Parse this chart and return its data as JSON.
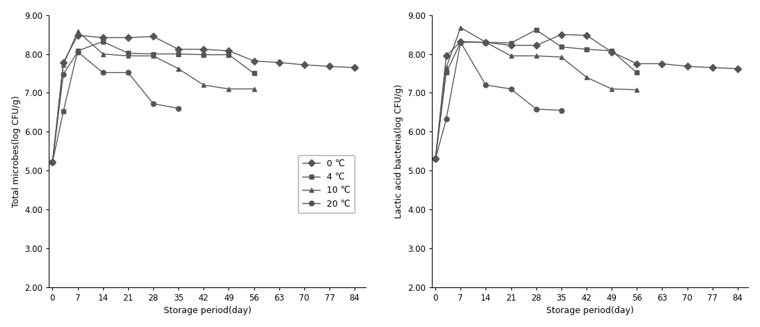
{
  "x_ticks": [
    0,
    7,
    14,
    21,
    28,
    35,
    42,
    49,
    56,
    63,
    70,
    77,
    84
  ],
  "ylim": [
    2.0,
    9.0
  ],
  "yticks": [
    2.0,
    3.0,
    4.0,
    5.0,
    6.0,
    7.0,
    8.0,
    9.0
  ],
  "left_ylabel": "Total microbes(log CFU/g)",
  "right_ylabel": "Lactic acid bacteria(log CFU/g)",
  "xlabel": "Storage period(day)",
  "legend_labels": [
    "0 ℃",
    "4 ℃",
    "10 ℃",
    "20 ℃"
  ],
  "left": {
    "0C": {
      "x": [
        0,
        3,
        7,
        14,
        21,
        28,
        35,
        42,
        49,
        56,
        63,
        70,
        77,
        84
      ],
      "y": [
        5.22,
        7.78,
        8.48,
        8.42,
        8.42,
        8.45,
        8.12,
        8.12,
        8.08,
        7.82,
        7.78,
        7.72,
        7.68,
        7.65
      ]
    },
    "4C": {
      "x": [
        0,
        3,
        7,
        14,
        21,
        28,
        35,
        42,
        49,
        56
      ],
      "y": [
        5.22,
        6.52,
        8.08,
        8.32,
        8.02,
        8.0,
        8.0,
        7.98,
        7.98,
        7.5
      ]
    },
    "10C": {
      "x": [
        0,
        3,
        7,
        14,
        21,
        28,
        35,
        42,
        49,
        56
      ],
      "y": [
        5.22,
        7.72,
        8.58,
        8.0,
        7.95,
        7.95,
        7.62,
        7.2,
        7.1,
        7.1
      ]
    },
    "20C": {
      "x": [
        0,
        3,
        7,
        14,
        21,
        28,
        35
      ],
      "y": [
        5.22,
        7.48,
        8.05,
        7.52,
        7.52,
        6.72,
        6.6
      ]
    }
  },
  "right": {
    "0C": {
      "x": [
        0,
        3,
        7,
        14,
        21,
        28,
        35,
        42,
        49,
        56,
        63,
        70,
        77,
        84
      ],
      "y": [
        5.3,
        7.95,
        8.32,
        8.3,
        8.22,
        8.22,
        8.5,
        8.48,
        8.05,
        7.75,
        7.75,
        7.68,
        7.65,
        7.62
      ]
    },
    "4C": {
      "x": [
        0,
        3,
        7,
        14,
        21,
        28,
        35,
        42,
        49,
        56
      ],
      "y": [
        5.3,
        7.52,
        8.3,
        8.3,
        8.28,
        8.62,
        8.18,
        8.12,
        8.08,
        7.52
      ]
    },
    "10C": {
      "x": [
        0,
        3,
        7,
        14,
        21,
        28,
        35,
        42,
        49,
        56
      ],
      "y": [
        5.3,
        7.65,
        8.68,
        8.3,
        7.95,
        7.95,
        7.92,
        7.4,
        7.1,
        7.08
      ]
    },
    "20C": {
      "x": [
        0,
        3,
        7,
        14,
        21,
        28,
        35
      ],
      "y": [
        5.3,
        6.32,
        8.3,
        7.2,
        7.1,
        6.58,
        6.55
      ]
    }
  },
  "line_color": "#555555",
  "markers": {
    "0C": "D",
    "4C": "s",
    "10C": "^",
    "20C": "o"
  },
  "markersize": 5,
  "linewidth": 1.0,
  "fontsize_tick": 8.5,
  "fontsize_label": 9,
  "fontsize_legend": 9
}
